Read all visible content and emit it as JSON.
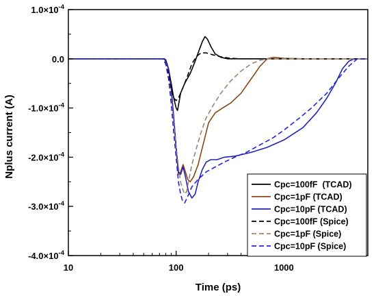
{
  "chart_data": {
    "type": "line",
    "title": "",
    "xlabel": "Time (ps)",
    "ylabel": "Nplus current (A)",
    "xscale": "log",
    "xlim": [
      10,
      6000
    ],
    "ylim": [
      -0.0004,
      0.0001
    ],
    "xticks": [
      10,
      100,
      1000
    ],
    "xtick_labels": [
      "10",
      "100",
      "1000"
    ],
    "yticks": [
      0.0001,
      0.0,
      -0.0001,
      -0.0002,
      -0.0003,
      -0.0004
    ],
    "ytick_labels": [
      {
        "mantissa": "1.0×10",
        "exp": "-4"
      },
      {
        "mantissa": "0.0",
        "exp": ""
      },
      {
        "mantissa": "-1.0×10",
        "exp": "-4"
      },
      {
        "mantissa": "-2.0×10",
        "exp": "-4"
      },
      {
        "mantissa": "-3.0×10",
        "exp": "-4"
      },
      {
        "mantissa": "-4.0×10",
        "exp": "-4"
      }
    ],
    "grid": false,
    "legend_position": "bottom-right",
    "series": [
      {
        "name": "Cpc=100fF  (TCAD)",
        "color": "#000000",
        "dash": "solid",
        "points": [
          [
            10,
            0
          ],
          [
            75,
            0
          ],
          [
            80,
            -2e-06
          ],
          [
            85,
            -2e-05
          ],
          [
            90,
            -5e-05
          ],
          [
            95,
            -8e-05
          ],
          [
            100,
            -0.0001
          ],
          [
            103,
            -0.000105
          ],
          [
            106,
            -9e-05
          ],
          [
            110,
            -7e-05
          ],
          [
            120,
            -5e-05
          ],
          [
            135,
            -3e-05
          ],
          [
            150,
            -5e-06
          ],
          [
            165,
            2e-05
          ],
          [
            175,
            3.5e-05
          ],
          [
            185,
            4.5e-05
          ],
          [
            195,
            4e-05
          ],
          [
            210,
            2.5e-05
          ],
          [
            230,
            1e-05
          ],
          [
            260,
            3e-06
          ],
          [
            300,
            0
          ],
          [
            6000,
            0
          ]
        ]
      },
      {
        "name": "Cpc=1pF (TCAD)",
        "color": "#8b4513",
        "dash": "solid",
        "points": [
          [
            10,
            0
          ],
          [
            78,
            0
          ],
          [
            85,
            -2e-05
          ],
          [
            90,
            -6e-05
          ],
          [
            95,
            -0.00012
          ],
          [
            100,
            -0.00018
          ],
          [
            105,
            -0.000235
          ],
          [
            110,
            -0.00023
          ],
          [
            116,
            -0.000215
          ],
          [
            122,
            -0.00023
          ],
          [
            128,
            -0.000245
          ],
          [
            135,
            -0.00025
          ],
          [
            145,
            -0.00024
          ],
          [
            160,
            -0.000215
          ],
          [
            180,
            -0.00017
          ],
          [
            200,
            -0.00013
          ],
          [
            230,
            -0.00011
          ],
          [
            270,
            -0.0001
          ],
          [
            320,
            -9e-05
          ],
          [
            400,
            -7e-05
          ],
          [
            500,
            -4e-05
          ],
          [
            600,
            -1.5e-05
          ],
          [
            700,
            0
          ],
          [
            800,
            3e-06
          ],
          [
            1000,
            1e-06
          ],
          [
            1500,
            0
          ],
          [
            6000,
            0
          ]
        ]
      },
      {
        "name": "Cpc=10pF (TCAD)",
        "color": "#2222b4",
        "dash": "solid",
        "points": [
          [
            10,
            0
          ],
          [
            78,
            0
          ],
          [
            85,
            -2e-05
          ],
          [
            90,
            -6e-05
          ],
          [
            95,
            -0.00012
          ],
          [
            100,
            -0.00018
          ],
          [
            105,
            -0.00023
          ],
          [
            110,
            -0.000235
          ],
          [
            116,
            -0.00022
          ],
          [
            122,
            -0.00024
          ],
          [
            130,
            -0.00027
          ],
          [
            140,
            -0.000283
          ],
          [
            150,
            -0.000275
          ],
          [
            160,
            -0.00025
          ],
          [
            175,
            -0.000225
          ],
          [
            190,
            -0.00021
          ],
          [
            210,
            -0.000205
          ],
          [
            240,
            -0.000205
          ],
          [
            280,
            -0.0002
          ],
          [
            350,
            -0.000198
          ],
          [
            500,
            -0.00019
          ],
          [
            700,
            -0.00018
          ],
          [
            1000,
            -0.000165
          ],
          [
            1500,
            -0.00014
          ],
          [
            2000,
            -0.00011
          ],
          [
            2500,
            -8e-05
          ],
          [
            3000,
            -5e-05
          ],
          [
            3500,
            -2e-05
          ],
          [
            4000,
            -5e-06
          ],
          [
            4500,
            0
          ],
          [
            6000,
            0
          ]
        ]
      },
      {
        "name": "Cpc=100fF (Spice)",
        "color": "#000000",
        "dash": "dashed",
        "points": [
          [
            10,
            0
          ],
          [
            75,
            0
          ],
          [
            80,
            -1e-05
          ],
          [
            85,
            -3e-05
          ],
          [
            90,
            -6e-05
          ],
          [
            95,
            -8e-05
          ],
          [
            100,
            -8.5e-05
          ],
          [
            105,
            -8e-05
          ],
          [
            110,
            -7e-05
          ],
          [
            120,
            -5e-05
          ],
          [
            130,
            -3e-05
          ],
          [
            140,
            -1e-05
          ],
          [
            155,
            5e-06
          ],
          [
            170,
            1.2e-05
          ],
          [
            190,
            1.2e-05
          ],
          [
            220,
            8e-06
          ],
          [
            260,
            4e-06
          ],
          [
            320,
            1e-06
          ],
          [
            400,
            0
          ],
          [
            6000,
            0
          ]
        ]
      },
      {
        "name": "Cpc=1pF (Spice)",
        "color": "#a0826d",
        "dash": "dashed",
        "points": [
          [
            10,
            0
          ],
          [
            75,
            0
          ],
          [
            80,
            -1e-05
          ],
          [
            85,
            -4e-05
          ],
          [
            90,
            -8e-05
          ],
          [
            95,
            -0.00013
          ],
          [
            100,
            -0.00018
          ],
          [
            105,
            -0.00022
          ],
          [
            110,
            -0.00025
          ],
          [
            115,
            -0.000265
          ],
          [
            120,
            -0.000275
          ],
          [
            125,
            -0.00027
          ],
          [
            130,
            -0.00025
          ],
          [
            140,
            -0.000215
          ],
          [
            155,
            -0.00018
          ],
          [
            170,
            -0.00015
          ],
          [
            190,
            -0.00012
          ],
          [
            220,
            -9.5e-05
          ],
          [
            260,
            -7e-05
          ],
          [
            320,
            -4.5e-05
          ],
          [
            400,
            -2.5e-05
          ],
          [
            500,
            -1e-05
          ],
          [
            600,
            -3e-06
          ],
          [
            700,
            0
          ],
          [
            6000,
            0
          ]
        ]
      },
      {
        "name": "Cpc=10pF (Spice)",
        "color": "#2222dd",
        "dash": "dashed",
        "points": [
          [
            10,
            0
          ],
          [
            75,
            0
          ],
          [
            80,
            -1e-05
          ],
          [
            85,
            -4e-05
          ],
          [
            90,
            -9e-05
          ],
          [
            95,
            -0.00015
          ],
          [
            100,
            -0.0002
          ],
          [
            105,
            -0.00025
          ],
          [
            110,
            -0.000275
          ],
          [
            115,
            -0.00029
          ],
          [
            120,
            -0.000293
          ],
          [
            128,
            -0.00028
          ],
          [
            140,
            -0.00026
          ],
          [
            160,
            -0.000245
          ],
          [
            190,
            -0.00023
          ],
          [
            230,
            -0.00022
          ],
          [
            280,
            -0.00021
          ],
          [
            350,
            -0.0002
          ],
          [
            450,
            -0.00019
          ],
          [
            600,
            -0.000175
          ],
          [
            800,
            -0.00016
          ],
          [
            1000,
            -0.000145
          ],
          [
            1400,
            -0.00012
          ],
          [
            1800,
            -0.0001
          ],
          [
            2500,
            -7e-05
          ],
          [
            3200,
            -4e-05
          ],
          [
            4000,
            -1.5e-05
          ],
          [
            4800,
            0
          ],
          [
            6000,
            0
          ]
        ]
      }
    ]
  }
}
